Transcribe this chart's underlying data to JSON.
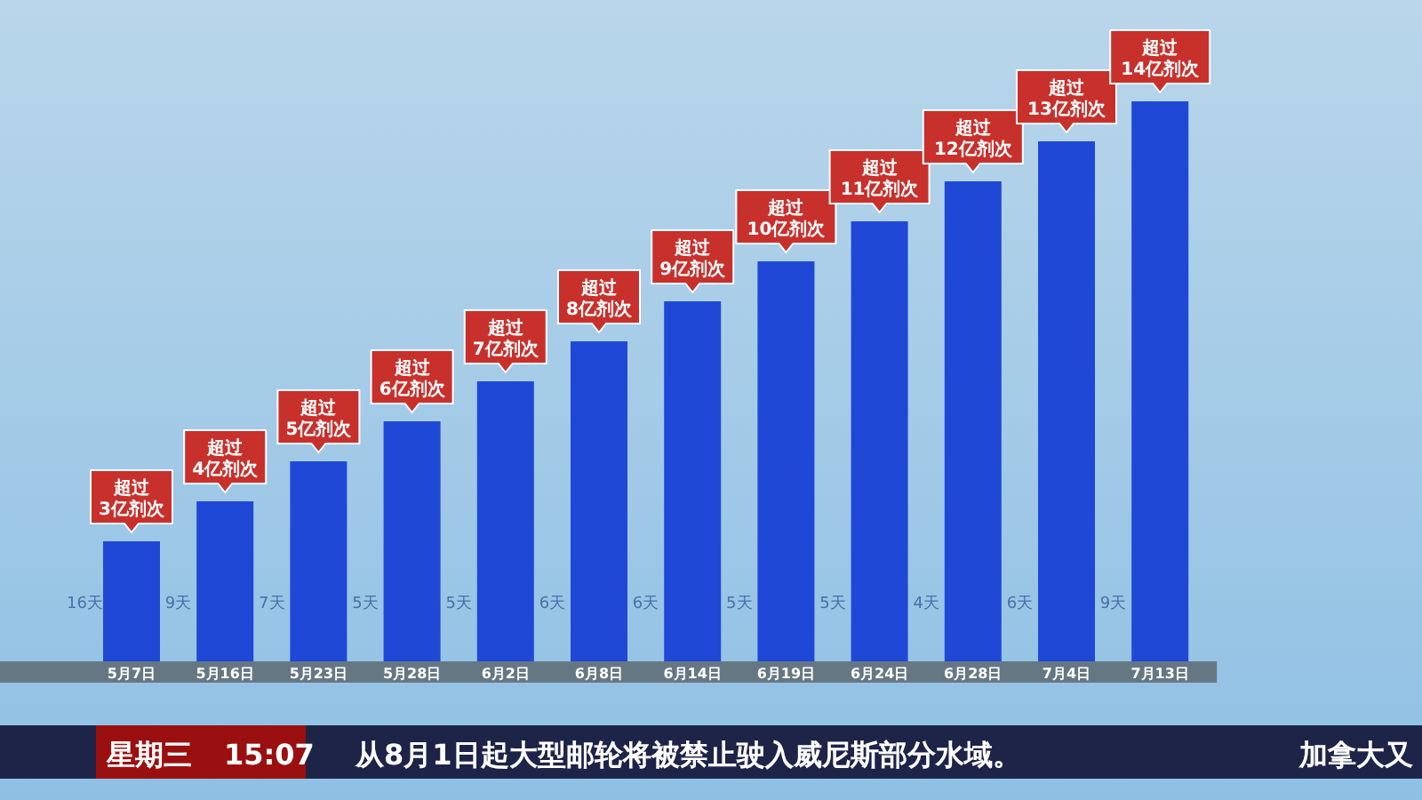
{
  "chart_data": {
    "type": "bar",
    "categories": [
      "5月7日",
      "5月16日",
      "5月23日",
      "5月28日",
      "6月2日",
      "6月8日",
      "6月14日",
      "6月19日",
      "6月24日",
      "6月28日",
      "7月4日",
      "7月13日"
    ],
    "values": [
      3,
      4,
      5,
      6,
      7,
      8,
      9,
      10,
      11,
      12,
      13,
      14
    ],
    "value_labels": [
      "超过3亿剂次",
      "超过4亿剂次",
      "超过5亿剂次",
      "超过6亿剂次",
      "超过7亿剂次",
      "超过8亿剂次",
      "超过9亿剂次",
      "超过10亿剂次",
      "超过11亿剂次",
      "超过12亿剂次",
      "超过13亿剂次",
      "超过14亿剂次"
    ],
    "color": "#1f48d6",
    "annotations": [
      "16天",
      "9天",
      "7天",
      "5天",
      "5天",
      "6天",
      "6天",
      "5天",
      "5天",
      "4天",
      "6天",
      "9天",
      "星期三",
      "15:07",
      "从8月1日起大型邮轮将被禁止驶入威尼斯部分水域。",
      "加拿大又"
    ]
  }
}
